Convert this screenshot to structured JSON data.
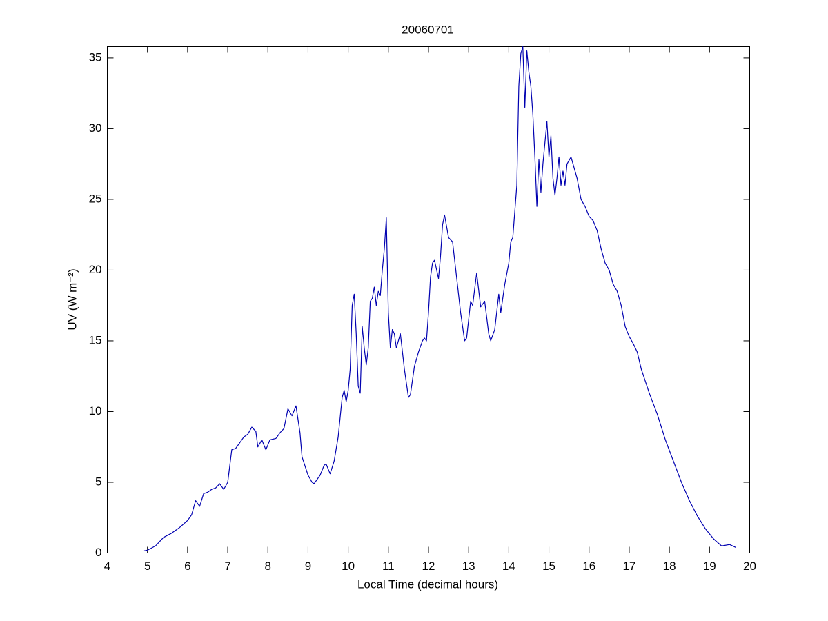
{
  "chart_data": {
    "type": "line",
    "title": "20060701",
    "x_label": "Local Time (decimal hours)",
    "y_label": "UV (W m⁻²)",
    "color": "#0000b0",
    "x": [
      4.9,
      5.0,
      5.2,
      5.4,
      5.6,
      5.8,
      6.0,
      6.1,
      6.2,
      6.3,
      6.4,
      6.5,
      6.6,
      6.7,
      6.8,
      6.9,
      7.0,
      7.1,
      7.2,
      7.3,
      7.4,
      7.5,
      7.6,
      7.7,
      7.75,
      7.85,
      7.95,
      8.05,
      8.2,
      8.3,
      8.4,
      8.5,
      8.6,
      8.7,
      8.8,
      8.85,
      9.0,
      9.1,
      9.15,
      9.3,
      9.4,
      9.45,
      9.55,
      9.65,
      9.75,
      9.85,
      9.9,
      9.95,
      10.0,
      10.05,
      10.1,
      10.15,
      10.2,
      10.25,
      10.3,
      10.35,
      10.4,
      10.45,
      10.5,
      10.55,
      10.6,
      10.65,
      10.7,
      10.75,
      10.8,
      10.85,
      10.9,
      10.95,
      11.0,
      11.05,
      11.1,
      11.15,
      11.2,
      11.3,
      11.4,
      11.5,
      11.55,
      11.65,
      11.75,
      11.85,
      11.9,
      11.95,
      12.0,
      12.05,
      12.1,
      12.15,
      12.25,
      12.3,
      12.35,
      12.4,
      12.5,
      12.6,
      12.7,
      12.8,
      12.9,
      12.95,
      13.05,
      13.1,
      13.2,
      13.3,
      13.4,
      13.5,
      13.55,
      13.65,
      13.75,
      13.8,
      13.9,
      14.0,
      14.05,
      14.1,
      14.2,
      14.25,
      14.3,
      14.35,
      14.4,
      14.45,
      14.5,
      14.55,
      14.6,
      14.65,
      14.7,
      14.75,
      14.8,
      14.85,
      14.95,
      15.0,
      15.05,
      15.1,
      15.15,
      15.2,
      15.25,
      15.3,
      15.35,
      15.4,
      15.45,
      15.55,
      15.7,
      15.8,
      15.9,
      16.0,
      16.1,
      16.2,
      16.3,
      16.4,
      16.5,
      16.6,
      16.7,
      16.8,
      16.9,
      17.0,
      17.1,
      17.2,
      17.3,
      17.5,
      17.7,
      17.9,
      18.1,
      18.3,
      18.5,
      18.7,
      18.9,
      19.1,
      19.3,
      19.5,
      19.65
    ],
    "values": [
      0.15,
      0.2,
      0.5,
      1.1,
      1.4,
      1.8,
      2.3,
      2.7,
      3.7,
      3.3,
      4.2,
      4.3,
      4.5,
      4.6,
      4.9,
      4.5,
      5.0,
      7.3,
      7.4,
      7.8,
      8.2,
      8.4,
      8.9,
      8.6,
      7.5,
      8.0,
      7.3,
      8.0,
      8.1,
      8.5,
      8.8,
      10.2,
      9.7,
      10.4,
      8.5,
      6.8,
      5.5,
      5.0,
      4.9,
      5.5,
      6.2,
      6.3,
      5.6,
      6.5,
      8.2,
      11.0,
      11.5,
      10.7,
      11.5,
      13.0,
      17.5,
      18.3,
      15.5,
      11.8,
      11.3,
      16.0,
      14.5,
      13.3,
      14.5,
      17.8,
      18.0,
      18.8,
      17.5,
      18.5,
      18.2,
      20.0,
      21.5,
      23.7,
      17.0,
      14.5,
      15.8,
      15.5,
      14.5,
      15.5,
      13.0,
      11.0,
      11.2,
      13.2,
      14.2,
      15.0,
      15.2,
      15.0,
      17.0,
      19.5,
      20.5,
      20.7,
      19.4,
      21.0,
      23.2,
      23.9,
      22.3,
      22.0,
      19.5,
      17.0,
      15.0,
      15.2,
      17.8,
      17.5,
      19.8,
      17.4,
      17.8,
      15.5,
      15.0,
      15.8,
      18.3,
      17.0,
      19.0,
      20.5,
      22.0,
      22.3,
      26.0,
      33.0,
      35.3,
      35.8,
      31.5,
      35.5,
      34.0,
      33.0,
      31.0,
      28.0,
      24.5,
      27.8,
      25.5,
      27.5,
      30.5,
      28.0,
      29.5,
      26.5,
      25.3,
      26.5,
      28.0,
      26.0,
      27.0,
      26.0,
      27.5,
      28.0,
      26.5,
      25.0,
      24.5,
      23.8,
      23.5,
      22.8,
      21.5,
      20.5,
      20.0,
      19.0,
      18.5,
      17.5,
      16.0,
      15.3,
      14.8,
      14.2,
      13.0,
      11.3,
      9.8,
      8.0,
      6.5,
      5.0,
      3.7,
      2.6,
      1.7,
      1.0,
      0.5,
      0.6,
      0.4
    ],
    "xlim": [
      4,
      20
    ],
    "xticks": [
      4,
      5,
      6,
      7,
      8,
      9,
      10,
      11,
      12,
      13,
      14,
      15,
      16,
      17,
      18,
      19,
      20
    ],
    "ylim": [
      0,
      35.8
    ],
    "yticks": [
      0,
      5,
      10,
      15,
      20,
      25,
      30,
      35
    ]
  }
}
